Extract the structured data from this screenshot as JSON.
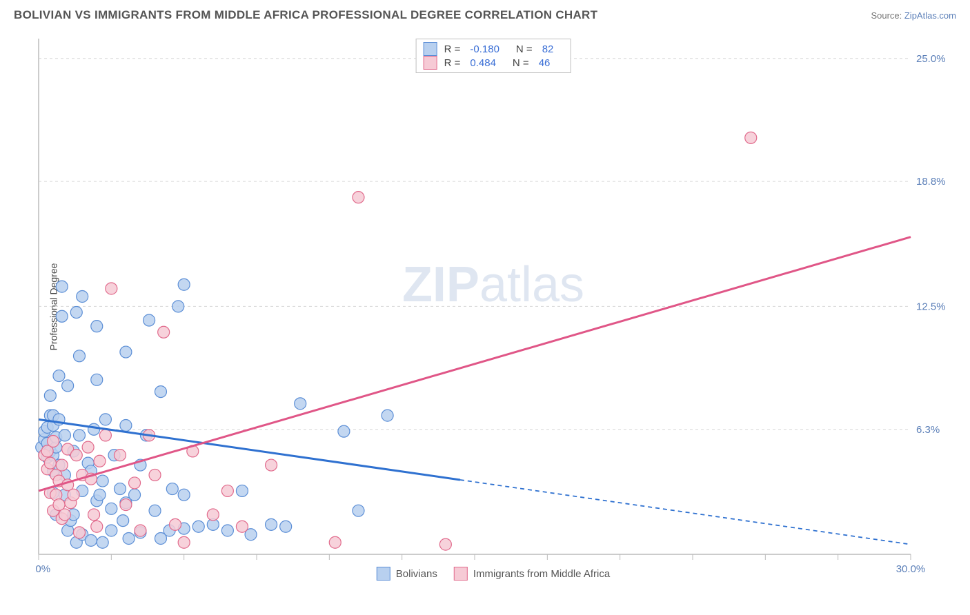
{
  "header": {
    "title": "BOLIVIAN VS IMMIGRANTS FROM MIDDLE AFRICA PROFESSIONAL DEGREE CORRELATION CHART",
    "source_label": "Source: ",
    "source_link": "ZipAtlas.com"
  },
  "chart": {
    "type": "scatter",
    "y_axis_title": "Professional Degree",
    "background_color": "#ffffff",
    "grid_color": "#d6d6d6",
    "axis_color": "#cccccc",
    "xlim": [
      0,
      30
    ],
    "ylim": [
      0,
      26
    ],
    "x_ticks": [
      0,
      2.5,
      5,
      7.5,
      10,
      12.5,
      15,
      17.5,
      20,
      22.5,
      25,
      27.5,
      30
    ],
    "x_tick_labels": {
      "0": "0.0%",
      "30": "30.0%"
    },
    "y_ticks": [
      0,
      6.3,
      12.5,
      18.8,
      25.0
    ],
    "y_tick_labels": [
      "0.0%",
      "6.3%",
      "12.5%",
      "18.8%",
      "25.0%"
    ],
    "watermark": "ZIP atlas",
    "series": [
      {
        "name": "Bolivians",
        "label": "Bolivians",
        "fill": "#b8d0ef",
        "stroke": "#5b8ed6",
        "marker_radius": 8.5,
        "marker_opacity": 0.85,
        "regression": {
          "x1": 0,
          "y1": 6.8,
          "x2": 30,
          "y2": 0.5,
          "solid_until_x": 14.5,
          "dash": "6 5",
          "line_color": "#2f71d0",
          "line_width": 3
        },
        "legend_stats": {
          "r_label": "R =",
          "r": "-0.180",
          "n_label": "N =",
          "n": "82"
        },
        "points": [
          [
            0.1,
            5.4
          ],
          [
            0.2,
            5.8
          ],
          [
            0.2,
            6.2
          ],
          [
            0.3,
            4.9
          ],
          [
            0.3,
            5.6
          ],
          [
            0.3,
            6.4
          ],
          [
            0.4,
            5.2
          ],
          [
            0.4,
            7.0
          ],
          [
            0.4,
            8.0
          ],
          [
            0.5,
            3.1
          ],
          [
            0.5,
            4.2
          ],
          [
            0.5,
            5.0
          ],
          [
            0.5,
            6.5
          ],
          [
            0.5,
            7.0
          ],
          [
            0.6,
            2.0
          ],
          [
            0.6,
            5.4
          ],
          [
            0.6,
            5.9
          ],
          [
            0.7,
            4.5
          ],
          [
            0.7,
            6.8
          ],
          [
            0.7,
            9.0
          ],
          [
            0.8,
            12.0
          ],
          [
            0.8,
            13.5
          ],
          [
            0.9,
            3.0
          ],
          [
            0.9,
            4.0
          ],
          [
            0.9,
            6.0
          ],
          [
            1.0,
            1.2
          ],
          [
            1.0,
            8.5
          ],
          [
            1.1,
            1.7
          ],
          [
            1.2,
            2.0
          ],
          [
            1.2,
            5.2
          ],
          [
            1.3,
            0.6
          ],
          [
            1.3,
            12.2
          ],
          [
            1.4,
            6.0
          ],
          [
            1.4,
            10.0
          ],
          [
            1.5,
            1.0
          ],
          [
            1.5,
            3.2
          ],
          [
            1.5,
            13.0
          ],
          [
            1.7,
            4.6
          ],
          [
            1.8,
            0.7
          ],
          [
            1.8,
            4.2
          ],
          [
            1.9,
            6.3
          ],
          [
            2.0,
            2.7
          ],
          [
            2.0,
            8.8
          ],
          [
            2.0,
            11.5
          ],
          [
            2.1,
            3.0
          ],
          [
            2.2,
            0.6
          ],
          [
            2.2,
            3.7
          ],
          [
            2.3,
            6.8
          ],
          [
            2.5,
            1.2
          ],
          [
            2.5,
            2.3
          ],
          [
            2.6,
            5.0
          ],
          [
            2.8,
            3.3
          ],
          [
            2.9,
            1.7
          ],
          [
            3.0,
            2.6
          ],
          [
            3.0,
            6.5
          ],
          [
            3.0,
            10.2
          ],
          [
            3.1,
            0.8
          ],
          [
            3.3,
            3.0
          ],
          [
            3.5,
            1.1
          ],
          [
            3.5,
            4.5
          ],
          [
            3.7,
            6.0
          ],
          [
            3.8,
            11.8
          ],
          [
            4.0,
            2.2
          ],
          [
            4.2,
            0.8
          ],
          [
            4.2,
            8.2
          ],
          [
            4.5,
            1.2
          ],
          [
            4.6,
            3.3
          ],
          [
            4.8,
            12.5
          ],
          [
            5.0,
            1.3
          ],
          [
            5.0,
            3.0
          ],
          [
            5.0,
            13.6
          ],
          [
            5.5,
            1.4
          ],
          [
            6.0,
            1.5
          ],
          [
            6.5,
            1.2
          ],
          [
            7.0,
            3.2
          ],
          [
            7.3,
            1.0
          ],
          [
            8.0,
            1.5
          ],
          [
            8.5,
            1.4
          ],
          [
            9.0,
            7.6
          ],
          [
            10.5,
            6.2
          ],
          [
            11.0,
            2.2
          ],
          [
            12.0,
            7.0
          ]
        ]
      },
      {
        "name": "Immigrants from Middle Africa",
        "label": "Immigrants from Middle Africa",
        "fill": "#f6cad5",
        "stroke": "#e16a8c",
        "marker_radius": 8.5,
        "marker_opacity": 0.85,
        "regression": {
          "x1": 0,
          "y1": 3.2,
          "x2": 30,
          "y2": 16.0,
          "solid_until_x": 30,
          "dash": "",
          "line_color": "#e05687",
          "line_width": 3
        },
        "legend_stats": {
          "r_label": "R =",
          "r": "0.484",
          "n_label": "N =",
          "n": "46"
        },
        "points": [
          [
            0.2,
            5.0
          ],
          [
            0.3,
            4.3
          ],
          [
            0.3,
            5.2
          ],
          [
            0.4,
            3.1
          ],
          [
            0.4,
            4.6
          ],
          [
            0.5,
            2.2
          ],
          [
            0.5,
            5.7
          ],
          [
            0.6,
            3.0
          ],
          [
            0.6,
            4.0
          ],
          [
            0.7,
            2.5
          ],
          [
            0.7,
            3.7
          ],
          [
            0.8,
            1.8
          ],
          [
            0.8,
            4.5
          ],
          [
            0.9,
            2.0
          ],
          [
            1.0,
            3.5
          ],
          [
            1.0,
            5.3
          ],
          [
            1.1,
            2.6
          ],
          [
            1.2,
            3.0
          ],
          [
            1.3,
            5.0
          ],
          [
            1.4,
            1.1
          ],
          [
            1.5,
            4.0
          ],
          [
            1.7,
            5.4
          ],
          [
            1.8,
            3.8
          ],
          [
            1.9,
            2.0
          ],
          [
            2.0,
            1.4
          ],
          [
            2.1,
            4.7
          ],
          [
            2.3,
            6.0
          ],
          [
            2.5,
            13.4
          ],
          [
            2.8,
            5.0
          ],
          [
            3.0,
            2.5
          ],
          [
            3.3,
            3.6
          ],
          [
            3.5,
            1.2
          ],
          [
            3.8,
            6.0
          ],
          [
            4.0,
            4.0
          ],
          [
            4.3,
            11.2
          ],
          [
            4.7,
            1.5
          ],
          [
            5.0,
            0.6
          ],
          [
            5.3,
            5.2
          ],
          [
            6.0,
            2.0
          ],
          [
            6.5,
            3.2
          ],
          [
            7.0,
            1.4
          ],
          [
            8.0,
            4.5
          ],
          [
            10.2,
            0.6
          ],
          [
            11.0,
            18.0
          ],
          [
            14.0,
            0.5
          ],
          [
            24.5,
            21.0
          ]
        ]
      }
    ]
  }
}
